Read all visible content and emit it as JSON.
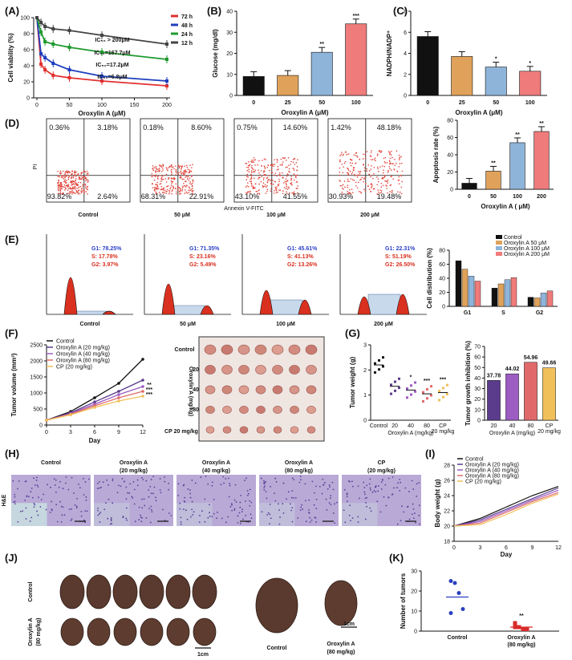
{
  "panel_labels": {
    "A": "(A)",
    "B": "(B)",
    "C": "(C)",
    "D": "(D)",
    "E": "(E)",
    "F": "(F)",
    "G": "(G)",
    "H": "(H)",
    "I": "(I)",
    "J": "(J)",
    "K": "(K)"
  },
  "colors": {
    "h72": "#e23030",
    "h48": "#1f3fbf",
    "h24": "#1f9a2f",
    "h12": "#444444",
    "b_black": "#111111",
    "b_orange": "#e0a25a",
    "b_blue": "#8fb4da",
    "b_red": "#ef7b7b"
  },
  "panelA": {
    "ylabel": "Cell viability (%)",
    "xlabel": "Oroxylin A (μM)",
    "legend": [
      "72 h",
      "48 h",
      "24 h",
      "12 h"
    ],
    "ic50": [
      "IC₅₀ > 200μM",
      "IC₅₀=167.7μM",
      "IC₅₀=17.2μM",
      "IC₅₀=6.8μM"
    ]
  },
  "panelB": {
    "ylabel": "Glucose (mg/dl)",
    "xlabel": "Oroxylin A (μM)",
    "stars": [
      "",
      "",
      "**",
      "***"
    ]
  },
  "panelC": {
    "ylabel": "NADPH/NADP⁺",
    "xlabel": "Oroxylin A (μM)",
    "stars": [
      "",
      "",
      "*",
      "*"
    ]
  },
  "panelD": {
    "xlabel": "Annexin V-FITC",
    "ylabel": "PI",
    "plots": [
      {
        "ul": "0.36%",
        "ur": "3.18%",
        "ll": "93.82%",
        "lr": "2.64%",
        "cap": "Control"
      },
      {
        "ul": "0.18%",
        "ur": "8.60%",
        "ll": "68.31%",
        "lr": "22.91%",
        "cap": "50 μM"
      },
      {
        "ul": "0.75%",
        "ur": "14.60%",
        "ll": "43.10%",
        "lr": "41.55%",
        "cap": "100 μM"
      },
      {
        "ul": "1.42%",
        "ur": "48.18%",
        "ll": "30.93%",
        "lr": "19.48%",
        "cap": "200 μM"
      }
    ],
    "bar_ylabel": "Apoptosis rate (%)",
    "bar_xlabel": "Oroxylin A ( μM)",
    "bar_stars": [
      "",
      "**",
      "**",
      "**"
    ]
  },
  "panelE": {
    "plots": [
      {
        "g1": "G1: 78.25%",
        "s": "S: 17.78%",
        "g2": "G2: 3.97%",
        "cap": "Control"
      },
      {
        "g1": "G1: 71.35%",
        "s": "S: 23.16%",
        "g2": "G2: 5.49%",
        "cap": "50 μM"
      },
      {
        "g1": "G1: 45.61%",
        "s": "S: 41.13%",
        "g2": "G2: 13.26%",
        "cap": "100 μM"
      },
      {
        "g1": "G1: 22.31%",
        "s": "S: 51.19%",
        "g2": "G2: 26.50%",
        "cap": "200 μM"
      }
    ],
    "legend": [
      "Control",
      "Oroxylin A 50 μM",
      "Oroxylin A 100 μM",
      "Oroxylin A 200 μM"
    ],
    "bar_ylabel": "Cell distribution (%)"
  },
  "panelF": {
    "ylabel": "Tumor volume (mm³)",
    "xlabel": "Day",
    "legend": [
      "Control",
      "Oroxylin A (20 mg/kg)",
      "Oroxylin A (40 mg/kg)",
      "Oroxylin A (80 mg/kg)",
      "CP (20 mg/kg)"
    ],
    "photo_labels": [
      "Control",
      "20",
      "40",
      "80",
      "CP 20 mg/kg"
    ],
    "photo_side": "Oroxylin A (mg/kg)"
  },
  "panelG": {
    "ylabel": "Tumor weight (g)",
    "xgroup": "Oroxylin A (mg/kg)",
    "inh_ylabel": "Tumor growth inhibition (%)",
    "inh_xgroup": "Oroxylin A (mg/kg)"
  },
  "panelH": {
    "side": "H&E",
    "captions": [
      "Control",
      "Oroxylin A\n(20 mg/kg)",
      "Oroxylin A\n(40 mg/kg)",
      "Oroxylin A\n(80 mg/kg)",
      "CP\n(20 mg/kg)"
    ]
  },
  "panelI": {
    "ylabel": "Body weight (g)",
    "xlabel": "Day",
    "legend": [
      "Control",
      "Oroxylin A (20 mg/kg)",
      "Oroxylin A (40 mg/kg)",
      "Oroxylin A (80 mg/kg)",
      "CP (20 mg/kg)"
    ]
  },
  "panelJ": {
    "row1": "Control",
    "row2": "Oroxylin A\n(80 mg/kg)",
    "scale1": "1cm",
    "scale2": "1cm",
    "cap1": "Control",
    "cap2": "Oroxylin A\n(80 mg/kg)"
  },
  "panelK": {
    "ylabel": "Number of tumors",
    "cats": [
      "Control",
      "Oroxylin A\n(80 mg/kg)"
    ],
    "stars": "**"
  },
  "chart_data": [
    {
      "id": "A",
      "type": "line",
      "x": [
        0,
        6.25,
        12.5,
        25,
        50,
        100,
        200
      ],
      "xlim": [
        0,
        200
      ],
      "ylim": [
        0,
        100
      ],
      "series": [
        {
          "name": "72 h",
          "values": [
            100,
            42,
            35,
            28,
            25,
            21,
            15
          ]
        },
        {
          "name": "48 h",
          "values": [
            100,
            55,
            50,
            43,
            35,
            27,
            21
          ]
        },
        {
          "name": "24 h",
          "values": [
            100,
            82,
            70,
            67,
            63,
            57,
            48
          ]
        },
        {
          "name": "12 h",
          "values": [
            100,
            94,
            89,
            86,
            84,
            78,
            67
          ]
        }
      ]
    },
    {
      "id": "B",
      "type": "bar",
      "categories": [
        "0",
        "25",
        "50",
        "100"
      ],
      "values": [
        9,
        9.5,
        20.5,
        34
      ],
      "ylim": [
        0,
        40
      ],
      "yticks": [
        0,
        10,
        20,
        30,
        40
      ]
    },
    {
      "id": "C",
      "type": "bar",
      "categories": [
        "0",
        "25",
        "50",
        "100"
      ],
      "values": [
        5.6,
        3.7,
        2.7,
        2.3
      ],
      "ylim": [
        0,
        8
      ],
      "yticks": [
        0,
        2,
        4,
        6,
        8
      ]
    },
    {
      "id": "D",
      "type": "bar",
      "categories": [
        "0",
        "50",
        "100",
        "200"
      ],
      "values": [
        7,
        21,
        54,
        67
      ],
      "ylim": [
        0,
        80
      ],
      "yticks": [
        0,
        20,
        40,
        60,
        80
      ]
    },
    {
      "id": "E",
      "type": "bar",
      "categories": [
        "G1",
        "S",
        "G2"
      ],
      "yticks": [
        0,
        20,
        40,
        60,
        80
      ],
      "ylim": [
        0,
        80
      ],
      "series": [
        {
          "name": "Control",
          "values": [
            65,
            26,
            13
          ]
        },
        {
          "name": "Oroxylin A 50 μM",
          "values": [
            53,
            32,
            12
          ]
        },
        {
          "name": "Oroxylin A 100 μM",
          "values": [
            43,
            38,
            19
          ]
        },
        {
          "name": "Oroxylin A 200 μM",
          "values": [
            36,
            41,
            22
          ]
        }
      ]
    },
    {
      "id": "F",
      "type": "line",
      "x": [
        0,
        3,
        6,
        9,
        12
      ],
      "xlim": [
        0,
        12
      ],
      "ylim": [
        0,
        2500
      ],
      "yticks": [
        0,
        500,
        1000,
        1500,
        2000,
        2500
      ],
      "series": [
        {
          "name": "Control",
          "values": [
            150,
            420,
            850,
            1300,
            2050
          ]
        },
        {
          "name": "Oroxylin A (20 mg/kg)",
          "values": [
            150,
            380,
            720,
            1050,
            1400
          ]
        },
        {
          "name": "Oroxylin A (40 mg/kg)",
          "values": [
            150,
            360,
            650,
            950,
            1200
          ]
        },
        {
          "name": "Oroxylin A (80 mg/kg)",
          "values": [
            150,
            340,
            600,
            850,
            1050
          ]
        },
        {
          "name": "CP (20 mg/kg)",
          "values": [
            150,
            320,
            550,
            750,
            900
          ]
        }
      ],
      "stars": [
        "**",
        "***",
        "***"
      ]
    },
    {
      "id": "G_weight",
      "type": "scatter",
      "categories": [
        "Control",
        "20",
        "40",
        "80",
        "CP\n20 mg/kg"
      ],
      "ylim": [
        0,
        3
      ],
      "yticks": [
        0,
        1,
        2,
        3
      ],
      "means": [
        2.2,
        1.35,
        1.2,
        1.05,
        1.1
      ],
      "stars": [
        "",
        "",
        "*",
        "***",
        "***"
      ]
    },
    {
      "id": "G_inhibition",
      "type": "bar",
      "categories": [
        "20",
        "40",
        "80",
        "CP\n20 mg/kg"
      ],
      "values": [
        37.78,
        44.02,
        54.96,
        49.66
      ],
      "ylim": [
        0,
        70
      ],
      "yticks": [
        0,
        10,
        20,
        30,
        40,
        50,
        60,
        70
      ]
    },
    {
      "id": "I",
      "type": "line",
      "x": [
        0,
        3,
        6,
        9,
        12
      ],
      "xlim": [
        0,
        12
      ],
      "ylim": [
        18,
        28
      ],
      "yticks": [
        18,
        20,
        22,
        24,
        26,
        28
      ],
      "series": [
        {
          "name": "Control",
          "values": [
            20,
            21,
            22.5,
            24,
            25.2
          ]
        },
        {
          "name": "Oroxylin A (20 mg/kg)",
          "values": [
            20,
            20.8,
            22.2,
            23.6,
            25
          ]
        },
        {
          "name": "Oroxylin A (40 mg/kg)",
          "values": [
            20,
            20.6,
            22,
            23.4,
            24.7
          ]
        },
        {
          "name": "Oroxylin A (80 mg/kg)",
          "values": [
            20,
            20.4,
            21.8,
            23.2,
            24.4
          ]
        },
        {
          "name": "CP (20 mg/kg)",
          "values": [
            20,
            20.2,
            21.5,
            23,
            24.2
          ]
        }
      ]
    },
    {
      "id": "K",
      "type": "scatter",
      "categories": [
        "Control",
        "Oroxylin A\n(80 mg/kg)"
      ],
      "ylim": [
        0,
        30
      ],
      "yticks": [
        0,
        10,
        20,
        30
      ],
      "points": [
        [
          25,
          24,
          19,
          11,
          9
        ],
        [
          4,
          2,
          1,
          1,
          2
        ]
      ],
      "means": [
        17,
        2
      ]
    }
  ]
}
